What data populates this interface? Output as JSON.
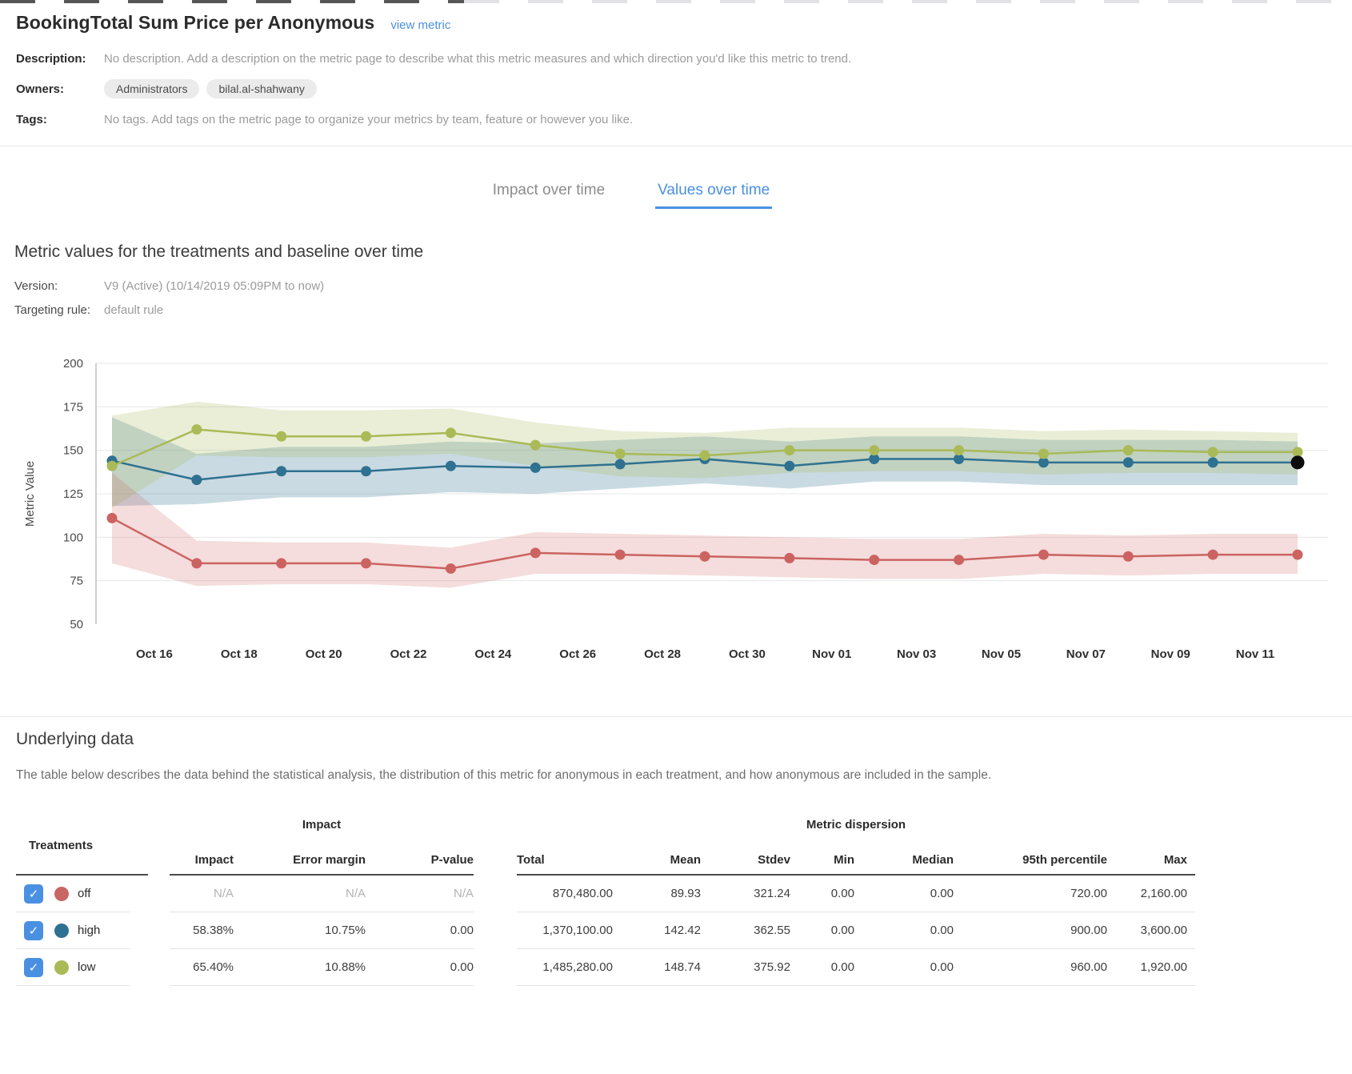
{
  "page": {
    "title": "BookingTotal Sum Price per Anonymous",
    "view_metric_label": "view metric",
    "description_label": "Description:",
    "description_value": "No description. Add a description on the metric page to describe what this metric measures and which direction you'd like this metric to trend.",
    "owners_label": "Owners:",
    "owners": [
      "Administrators",
      "bilal.al-shahwany"
    ],
    "tags_label": "Tags:",
    "tags_value": "No tags. Add tags on the metric page to organize your metrics by team, feature or however you like."
  },
  "tabs": [
    {
      "label": "Impact over time",
      "active": false
    },
    {
      "label": "Values over time",
      "active": true
    }
  ],
  "section": {
    "heading": "Metric values for the treatments and baseline over time",
    "version_label": "Version:",
    "version_value": "V9 (Active) (10/14/2019 05:09PM to now)",
    "targeting_label": "Targeting rule:",
    "targeting_value": "default rule"
  },
  "chart_data": {
    "type": "line",
    "title": "",
    "xlabel": "",
    "ylabel": "Metric Value",
    "ylim": [
      50,
      200
    ],
    "yticks": [
      50,
      75,
      100,
      125,
      150,
      175,
      200
    ],
    "grid": true,
    "legend_position": "none",
    "x_tick_labels": [
      "Oct 16",
      "Oct 18",
      "Oct 20",
      "Oct 22",
      "Oct 24",
      "Oct 26",
      "Oct 28",
      "Oct 30",
      "Nov 01",
      "Nov 03",
      "Nov 05",
      "Nov 07",
      "Nov 09",
      "Nov 11"
    ],
    "x_tick_labels_between_points": true,
    "series": [
      {
        "name": "off",
        "color": "#cb6361",
        "band_opacity": 0.22,
        "values": [
          111,
          85,
          85,
          85,
          82,
          91,
          90,
          89,
          88,
          87,
          87,
          90,
          89,
          90,
          90
        ],
        "band_low": [
          85,
          72,
          73,
          73,
          71,
          79,
          79,
          78,
          77,
          76,
          76,
          79,
          78,
          79,
          79
        ],
        "band_high": [
          137,
          98,
          97,
          97,
          94,
          103,
          102,
          101,
          100,
          99,
          99,
          102,
          101,
          102,
          102
        ]
      },
      {
        "name": "high",
        "color": "#2f7190",
        "band_opacity": 0.26,
        "highlight_last_point": "#0b0b0b",
        "values": [
          144,
          133,
          138,
          138,
          141,
          140,
          142,
          145,
          141,
          145,
          145,
          143,
          143,
          143,
          143
        ],
        "band_low": [
          118,
          119,
          123,
          123,
          126,
          125,
          128,
          131,
          128,
          132,
          132,
          130,
          130,
          130,
          130
        ],
        "band_high": [
          169,
          148,
          152,
          152,
          155,
          154,
          156,
          158,
          155,
          158,
          158,
          156,
          156,
          156,
          155
        ]
      },
      {
        "name": "low",
        "color": "#a9ba57",
        "band_opacity": 0.24,
        "values": [
          141,
          162,
          158,
          158,
          160,
          153,
          148,
          147,
          150,
          150,
          150,
          148,
          150,
          149,
          149
        ],
        "band_low": [
          117,
          147,
          146,
          146,
          148,
          141,
          135,
          134,
          137,
          138,
          138,
          136,
          137,
          137,
          136
        ],
        "band_high": [
          170,
          178,
          173,
          173,
          174,
          166,
          161,
          160,
          163,
          163,
          163,
          161,
          162,
          161,
          160
        ]
      }
    ]
  },
  "underlying": {
    "heading": "Underlying data",
    "description": "The table below describes the data behind the statistical analysis, the distribution of this metric for anonymous in each treatment, and how anonymous are included in the sample."
  },
  "table": {
    "treatments_header": "Treatments",
    "impact_group_header": "Impact",
    "dispersion_group_header": "Metric dispersion",
    "impact_columns": [
      "Impact",
      "Error margin",
      "P-value"
    ],
    "dispersion_columns": [
      "Total",
      "Mean",
      "Stdev",
      "Min",
      "Median",
      "95th percentile",
      "Max"
    ],
    "checkmark": "✓",
    "rows": [
      {
        "treatment": "off",
        "color": "#c96765",
        "checked": true,
        "impact_muted": true,
        "impact": [
          "N/A",
          "N/A",
          "N/A"
        ],
        "dispersion": [
          "870,480.00",
          "89.93",
          "321.24",
          "0.00",
          "0.00",
          "720.00",
          "2,160.00"
        ]
      },
      {
        "treatment": "high",
        "color": "#2f7190",
        "checked": true,
        "impact_muted": false,
        "impact": [
          "58.38%",
          "10.75%",
          "0.00"
        ],
        "dispersion": [
          "1,370,100.00",
          "142.42",
          "362.55",
          "0.00",
          "0.00",
          "900.00",
          "3,600.00"
        ]
      },
      {
        "treatment": "low",
        "color": "#a9ba57",
        "checked": true,
        "impact_muted": false,
        "impact": [
          "65.40%",
          "10.88%",
          "0.00"
        ],
        "dispersion": [
          "1,485,280.00",
          "148.74",
          "375.92",
          "0.00",
          "0.00",
          "960.00",
          "1,920.00"
        ]
      }
    ]
  },
  "colors": {
    "accent_blue": "#4a90e2",
    "muted_text": "#9b9b9b",
    "grid_line": "#e7e7e7",
    "axis_line": "#c2c2c2",
    "current_point": "#0b0b0b"
  }
}
